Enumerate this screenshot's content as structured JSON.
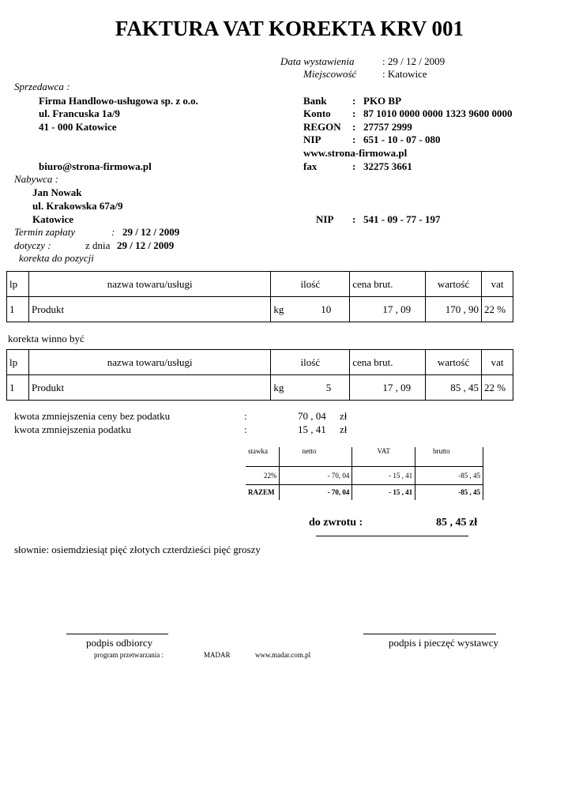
{
  "title": "FAKTURA VAT KOREKTA KRV 001",
  "issue": {
    "date_label": "Data wystawienia",
    "date_value": ":  29 / 12 / 2009",
    "place_label": "Miejscowość",
    "place_value": ":  Katowice"
  },
  "seller": {
    "label": "Sprzedawca :",
    "name": "Firma Handlowo-usługowa sp. z o.o.",
    "street": "ul. Francuska 1a/9",
    "city": "41 - 000   Katowice",
    "email": "biuro@strona-firmowa.pl"
  },
  "seller_info": [
    {
      "label": "Bank",
      "value": "PKO  BP"
    },
    {
      "label": "Konto",
      "value": "87 1010 0000 0000 1323 9600 0000"
    },
    {
      "label": "REGON",
      "value": "27757 2999"
    },
    {
      "label": "NIP",
      "value": "651 - 10 - 07 - 080"
    },
    {
      "label": "fax",
      "value": "32275 3661"
    }
  ],
  "website": "www.strona-firmowa.pl",
  "colon": ":",
  "buyer": {
    "label": "Nabywca    :",
    "name": "Jan Nowak",
    "street": "ul. Krakowska 67a/9",
    "city": "Katowice",
    "nip_label": "NIP",
    "nip_value": "541 - 09 - 77 - 197"
  },
  "payment": {
    "label": "Termin zapłaty",
    "colon": ":",
    "value": "29 / 12 / 2009"
  },
  "concerns": {
    "label": "dotyczy     :",
    "prefix": "z dnia",
    "value": "29 / 12 / 2009"
  },
  "correction_label": "korekta do pozycji",
  "headers": [
    "lp",
    "nazwa towaru/usługi",
    "ilość",
    "cena brut.",
    "wartość",
    "vat"
  ],
  "before": {
    "lp": "1",
    "name": "Produkt",
    "unit": "kg",
    "qty": "10",
    "price": "17 , 09",
    "value": "170 , 90",
    "vat": "22 %"
  },
  "should_be_label": "korekta winno  być",
  "after": {
    "lp": "1",
    "name": "Produkt",
    "unit": "kg",
    "qty": "5",
    "price": "17 , 09",
    "value": "85 , 45",
    "vat": "22 %"
  },
  "reductions": [
    {
      "label": "kwota zmniejszenia ceny bez podatku",
      "value": "70 , 04",
      "unit": "zł"
    },
    {
      "label": "kwota zmniejszenia podatku",
      "value": "15 , 41",
      "unit": "zł"
    }
  ],
  "summary": {
    "headers": [
      "stawka",
      "netto",
      "VAT",
      "brutto"
    ],
    "row": [
      "22%",
      "- 70, 04",
      "- 15 , 41",
      "-85 , 45"
    ],
    "total": [
      "RAZEM",
      "- 70, 04",
      "- 15 , 41",
      "-85 , 45"
    ]
  },
  "refund": {
    "label": "do zwrotu :",
    "value": "85 , 45  zł"
  },
  "in_words": "słownie: osiemdziesiąt pięć złotych czterdzieści pięć groszy",
  "signatures": {
    "receiver": "podpis odbiorcy",
    "issuer": "podpis i pieczęć wystawcy"
  },
  "footer": {
    "program": "program przetwarzania :",
    "name": "MADAR",
    "url": "www.madar.com.pl"
  }
}
